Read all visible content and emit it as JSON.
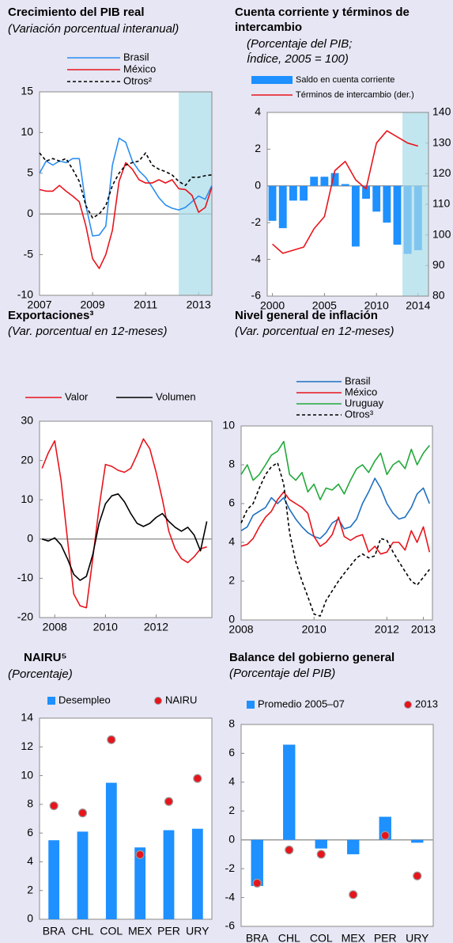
{
  "chart_data": [
    {
      "type": "line",
      "title": "Crecimiento del PIB real",
      "subtitle": "(Variación porcentual interanual)",
      "x": [
        2007,
        2007.25,
        2007.5,
        2007.75,
        2008,
        2008.25,
        2008.5,
        2008.75,
        2009,
        2009.25,
        2009.5,
        2009.75,
        2010,
        2010.25,
        2010.5,
        2010.75,
        2011,
        2011.25,
        2011.5,
        2011.75,
        2012,
        2012.25,
        2012.5,
        2012.75,
        2013,
        2013.25,
        2013.5
      ],
      "series": [
        {
          "name": "Brasil",
          "kind": "line",
          "color": "#2b8ef0",
          "values": [
            5,
            6.5,
            6,
            6.5,
            6.3,
            6.8,
            6.8,
            1,
            -2.7,
            -2.6,
            -1.5,
            6,
            9.3,
            8.8,
            6.5,
            5.3,
            4.5,
            3.3,
            2,
            1.1,
            0.7,
            0.5,
            0.8,
            1.5,
            2.2,
            1.8,
            3.5
          ]
        },
        {
          "name": "México",
          "kind": "line",
          "color": "#e8141c",
          "values": [
            3,
            2.8,
            2.8,
            3.5,
            2.8,
            2.2,
            1.5,
            -1.5,
            -5.5,
            -6.7,
            -5,
            -2,
            4,
            6.3,
            5.5,
            4.2,
            3.8,
            3.8,
            4.2,
            3.8,
            4.2,
            3.1,
            3,
            2.3,
            0.2,
            0.8,
            3.3
          ]
        },
        {
          "name": "Otros²",
          "kind": "line",
          "color": "#000000",
          "dash": true,
          "values": [
            7.5,
            6.5,
            6.8,
            6.5,
            6.8,
            5.5,
            4,
            1,
            -0.5,
            0,
            1,
            3.5,
            5,
            6,
            6.3,
            6.5,
            7.5,
            6,
            5.5,
            5.2,
            4.8,
            4,
            3.5,
            4.5,
            4.5,
            4.7,
            4.8
          ]
        }
      ],
      "xlim": [
        2007,
        2013.5
      ],
      "xticks": [
        2007,
        2009,
        2011,
        2013
      ],
      "ylim": [
        -10,
        15
      ],
      "yticks": [
        -10,
        -5,
        0,
        5,
        10,
        15
      ],
      "shaded_range": [
        2012.25,
        2013.5
      ]
    },
    {
      "type": "combo",
      "title": "Cuenta corriente y términos de intercambio",
      "subtitle": "(Porcentaje del PIB; Índice, 2005 = 100)",
      "x": [
        2000,
        2001,
        2002,
        2003,
        2004,
        2005,
        2006,
        2007,
        2008,
        2009,
        2010,
        2011,
        2012,
        2013,
        2014
      ],
      "series": [
        {
          "name": "Saldo en cuenta corriente",
          "kind": "bar",
          "color": "#1e90ff",
          "values": [
            -1.9,
            -2.3,
            -0.8,
            -0.8,
            0.5,
            0.5,
            0.7,
            0.1,
            -3.3,
            -0.7,
            -1.4,
            -2.0,
            -3.2,
            -3.7,
            -3.5
          ]
        },
        {
          "name": "Términos de intercambio (der.)",
          "kind": "line",
          "color": "#e8141c",
          "axis": "y2",
          "values": [
            97,
            94,
            95,
            96,
            102,
            106,
            121,
            124,
            118,
            115,
            130,
            134,
            132,
            130,
            129
          ]
        }
      ],
      "xlim": [
        1999.5,
        2015
      ],
      "xticks": [
        2000,
        2005,
        2010,
        2014
      ],
      "ylim": [
        -6,
        4
      ],
      "yticks": [
        -6,
        -4,
        -2,
        0,
        2,
        4
      ],
      "y2lim": [
        80,
        140
      ],
      "y2ticks": [
        80,
        90,
        100,
        110,
        120,
        130,
        140
      ],
      "shaded_range": [
        2012.5,
        2015
      ]
    },
    {
      "type": "line",
      "title": "Exportaciones³",
      "subtitle": "(Var. porcentual en 12-meses)",
      "x": [
        2007.5,
        2007.75,
        2008,
        2008.25,
        2008.5,
        2008.75,
        2009,
        2009.25,
        2009.5,
        2009.75,
        2010,
        2010.25,
        2010.5,
        2010.75,
        2011,
        2011.25,
        2011.5,
        2011.75,
        2012,
        2012.25,
        2012.5,
        2012.75,
        2013,
        2013.25,
        2013.5,
        2013.75,
        2014
      ],
      "series": [
        {
          "name": "Valor",
          "kind": "line",
          "color": "#e8141c",
          "values": [
            18,
            22,
            25,
            15,
            0,
            -14,
            -17,
            -17.5,
            -5,
            8,
            19,
            18.5,
            17.5,
            17,
            18,
            21.5,
            25.5,
            23,
            17,
            10,
            2,
            -2.5,
            -5,
            -6,
            -4.5,
            -2.5,
            -2
          ]
        },
        {
          "name": "Volumen",
          "kind": "line",
          "color": "#000000",
          "values": [
            0,
            -0.5,
            0.3,
            -1.5,
            -5,
            -9,
            -10.5,
            -9.5,
            -4,
            4,
            9,
            11,
            11.5,
            9.5,
            6.5,
            4,
            3.2,
            4,
            5.5,
            6.5,
            4.5,
            3,
            2,
            3,
            1,
            -3,
            4.5
          ]
        }
      ],
      "xlim": [
        2007.4,
        2014.2
      ],
      "xticks": [
        2008,
        2010,
        2012
      ],
      "ylim": [
        -20,
        30
      ],
      "yticks": [
        -20,
        -10,
        0,
        10,
        20,
        30
      ]
    },
    {
      "type": "line",
      "title": "Nivel general de inflación",
      "subtitle": "(Var. porcentual en 12-meses)",
      "x": [
        2008,
        2008.17,
        2008.33,
        2008.5,
        2008.67,
        2008.83,
        2009,
        2009.17,
        2009.33,
        2009.5,
        2009.67,
        2009.83,
        2010,
        2010.17,
        2010.33,
        2010.5,
        2010.67,
        2010.83,
        2011,
        2011.17,
        2011.33,
        2011.5,
        2011.67,
        2011.83,
        2012,
        2012.17,
        2012.33,
        2012.5,
        2012.67,
        2012.83,
        2013,
        2013.17
      ],
      "series": [
        {
          "name": "Brasil",
          "kind": "line",
          "color": "#1f6fc0",
          "values": [
            4.6,
            4.8,
            5.4,
            5.6,
            5.8,
            6.3,
            6.0,
            6.3,
            5.7,
            5.2,
            4.8,
            4.5,
            4.3,
            4.2,
            4.5,
            5.0,
            5.2,
            4.7,
            4.8,
            5.2,
            6.0,
            6.6,
            7.3,
            6.8,
            6.0,
            5.5,
            5.2,
            5.3,
            5.8,
            6.5,
            6.8,
            6.0
          ]
        },
        {
          "name": "México",
          "kind": "line",
          "color": "#e8141c",
          "values": [
            3.8,
            3.9,
            4.2,
            4.8,
            5.3,
            5.6,
            6.2,
            6.6,
            6.2,
            6.0,
            5.8,
            5.5,
            4.3,
            3.8,
            4.0,
            4.4,
            5.3,
            4.3,
            4.1,
            4.3,
            4.4,
            3.5,
            3.8,
            3.4,
            3.5,
            4.0,
            4.0,
            3.6,
            4.6,
            4.0,
            4.8,
            3.5
          ]
        },
        {
          "name": "Uruguay",
          "kind": "line",
          "color": "#22a83a",
          "values": [
            7.5,
            8.0,
            7.2,
            7.5,
            8.0,
            8.5,
            8.7,
            9.2,
            7.5,
            7.2,
            7.6,
            6.6,
            7.0,
            6.2,
            6.8,
            6.7,
            7.0,
            6.5,
            7.2,
            7.8,
            8.0,
            7.6,
            8.2,
            8.6,
            7.5,
            8.0,
            8.2,
            7.8,
            8.8,
            8.0,
            8.6,
            9.0
          ]
        },
        {
          "name": "Otros³",
          "kind": "line",
          "color": "#000000",
          "dash": true,
          "values": [
            5.0,
            5.7,
            6.0,
            6.8,
            7.5,
            7.9,
            8.1,
            7.0,
            4.5,
            3.0,
            2.0,
            1.2,
            0.3,
            0.2,
            1.0,
            1.5,
            2.0,
            2.4,
            2.8,
            3.2,
            3.4,
            3.2,
            3.3,
            4.2,
            4.1,
            3.5,
            3.0,
            2.5,
            2.0,
            1.8,
            2.2,
            2.6
          ]
        }
      ],
      "xlim": [
        2008,
        2013.25
      ],
      "xticks": [
        2008,
        2010,
        2012,
        2013
      ],
      "ylim": [
        0,
        10
      ],
      "yticks": [
        0,
        2,
        4,
        6,
        8,
        10
      ]
    },
    {
      "type": "combo",
      "title": "NAIRU⁵",
      "subtitle": "(Porcentaje)",
      "categories": [
        "BRA",
        "CHL",
        "COL",
        "MEX",
        "PER",
        "URY"
      ],
      "series": [
        {
          "name": "Desempleo",
          "kind": "bar",
          "color": "#1e90ff",
          "values": [
            5.5,
            6.1,
            9.5,
            5.0,
            6.2,
            6.3
          ]
        },
        {
          "name": "NAIRU",
          "kind": "dot",
          "color": "#e8141c",
          "values": [
            7.9,
            7.4,
            12.5,
            4.5,
            8.2,
            9.8
          ]
        }
      ],
      "ylim": [
        0,
        14
      ],
      "yticks": [
        0,
        2,
        4,
        6,
        8,
        10,
        12,
        14
      ]
    },
    {
      "type": "combo",
      "title": "Balance del gobierno general",
      "subtitle": "(Porcentaje del PIB)",
      "categories": [
        "BRA",
        "CHL",
        "COL",
        "MEX",
        "PER",
        "URY"
      ],
      "series": [
        {
          "name": "Promedio 2005–07",
          "kind": "bar",
          "color": "#1e90ff",
          "values": [
            -3.2,
            6.6,
            -0.6,
            -1.0,
            1.6,
            -0.2
          ]
        },
        {
          "name": "2013",
          "kind": "dot",
          "color": "#e8141c",
          "values": [
            -3.0,
            -0.7,
            -1.0,
            -3.8,
            0.3,
            -2.5
          ]
        }
      ],
      "ylim": [
        -6,
        8
      ],
      "yticks": [
        -6,
        -4,
        -2,
        0,
        2,
        4,
        6,
        8
      ]
    }
  ]
}
